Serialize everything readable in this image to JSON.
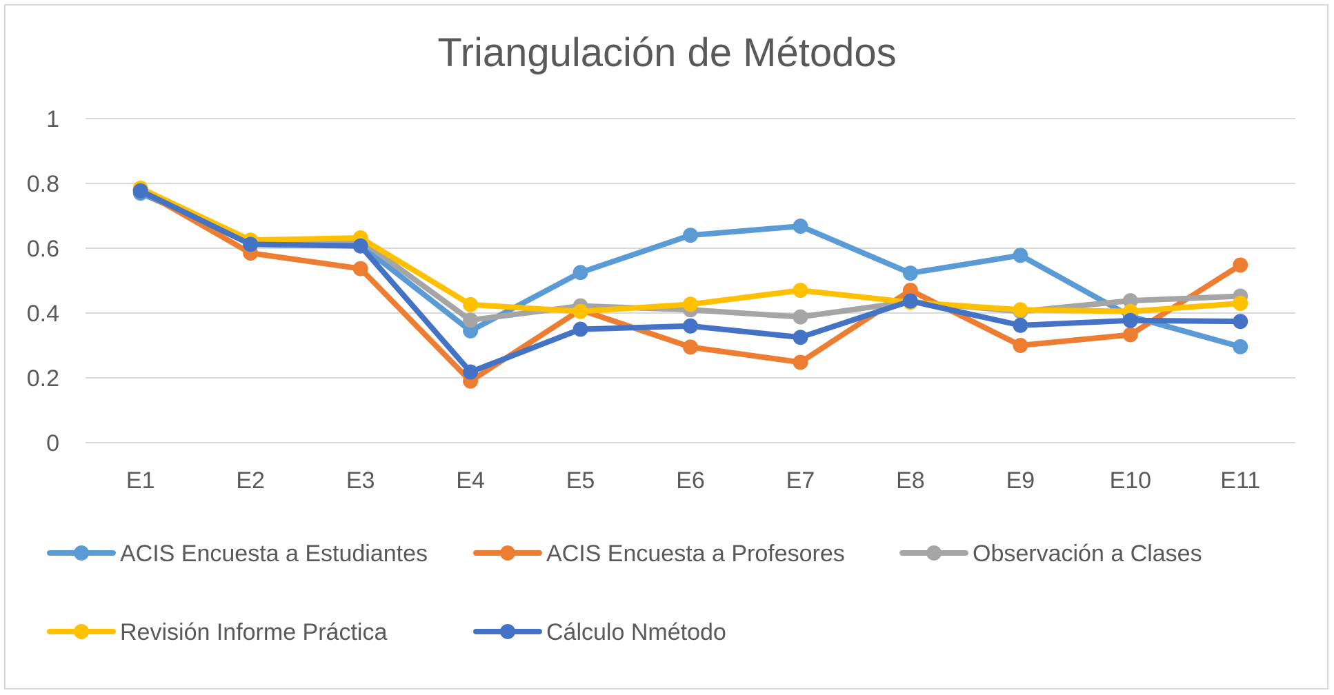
{
  "chart_data": {
    "type": "line",
    "title": "Triangulación de Métodos",
    "xlabel": "",
    "ylabel": "",
    "categories": [
      "E1",
      "E2",
      "E3",
      "E4",
      "E5",
      "E6",
      "E7",
      "E8",
      "E9",
      "E10",
      "E11"
    ],
    "ylim": [
      0,
      1
    ],
    "yticks": [
      0,
      0.2,
      0.4,
      0.6,
      0.8,
      1
    ],
    "ytick_labels": [
      "0",
      "0.2",
      "0.4",
      "0.6",
      "0.8",
      "1"
    ],
    "grid": true,
    "legend_position": "bottom",
    "series": [
      {
        "name": "ACIS Encuesta a Estudiantes",
        "color": "#5b9bd5",
        "values": [
          0.77,
          0.62,
          0.61,
          0.345,
          0.525,
          0.64,
          0.668,
          0.523,
          0.578,
          0.39,
          0.296
        ]
      },
      {
        "name": "ACIS Encuesta a Profesores",
        "color": "#ed7d31",
        "values": [
          0.78,
          0.585,
          0.537,
          0.19,
          0.41,
          0.295,
          0.248,
          0.47,
          0.3,
          0.333,
          0.548
        ]
      },
      {
        "name": "Observación a Clases",
        "color": "#a5a5a5",
        "values": [
          0.78,
          0.62,
          0.625,
          0.378,
          0.422,
          0.41,
          0.388,
          0.435,
          0.405,
          0.438,
          0.452
        ]
      },
      {
        "name": "Revisión Informe Práctica",
        "color": "#ffc000",
        "values": [
          0.785,
          0.625,
          0.632,
          0.426,
          0.405,
          0.427,
          0.47,
          0.433,
          0.41,
          0.405,
          0.43
        ]
      },
      {
        "name": "Cálculo Nmétodo",
        "color": "#4472c4",
        "values": [
          0.777,
          0.612,
          0.607,
          0.218,
          0.35,
          0.36,
          0.325,
          0.437,
          0.362,
          0.377,
          0.374
        ]
      }
    ]
  }
}
